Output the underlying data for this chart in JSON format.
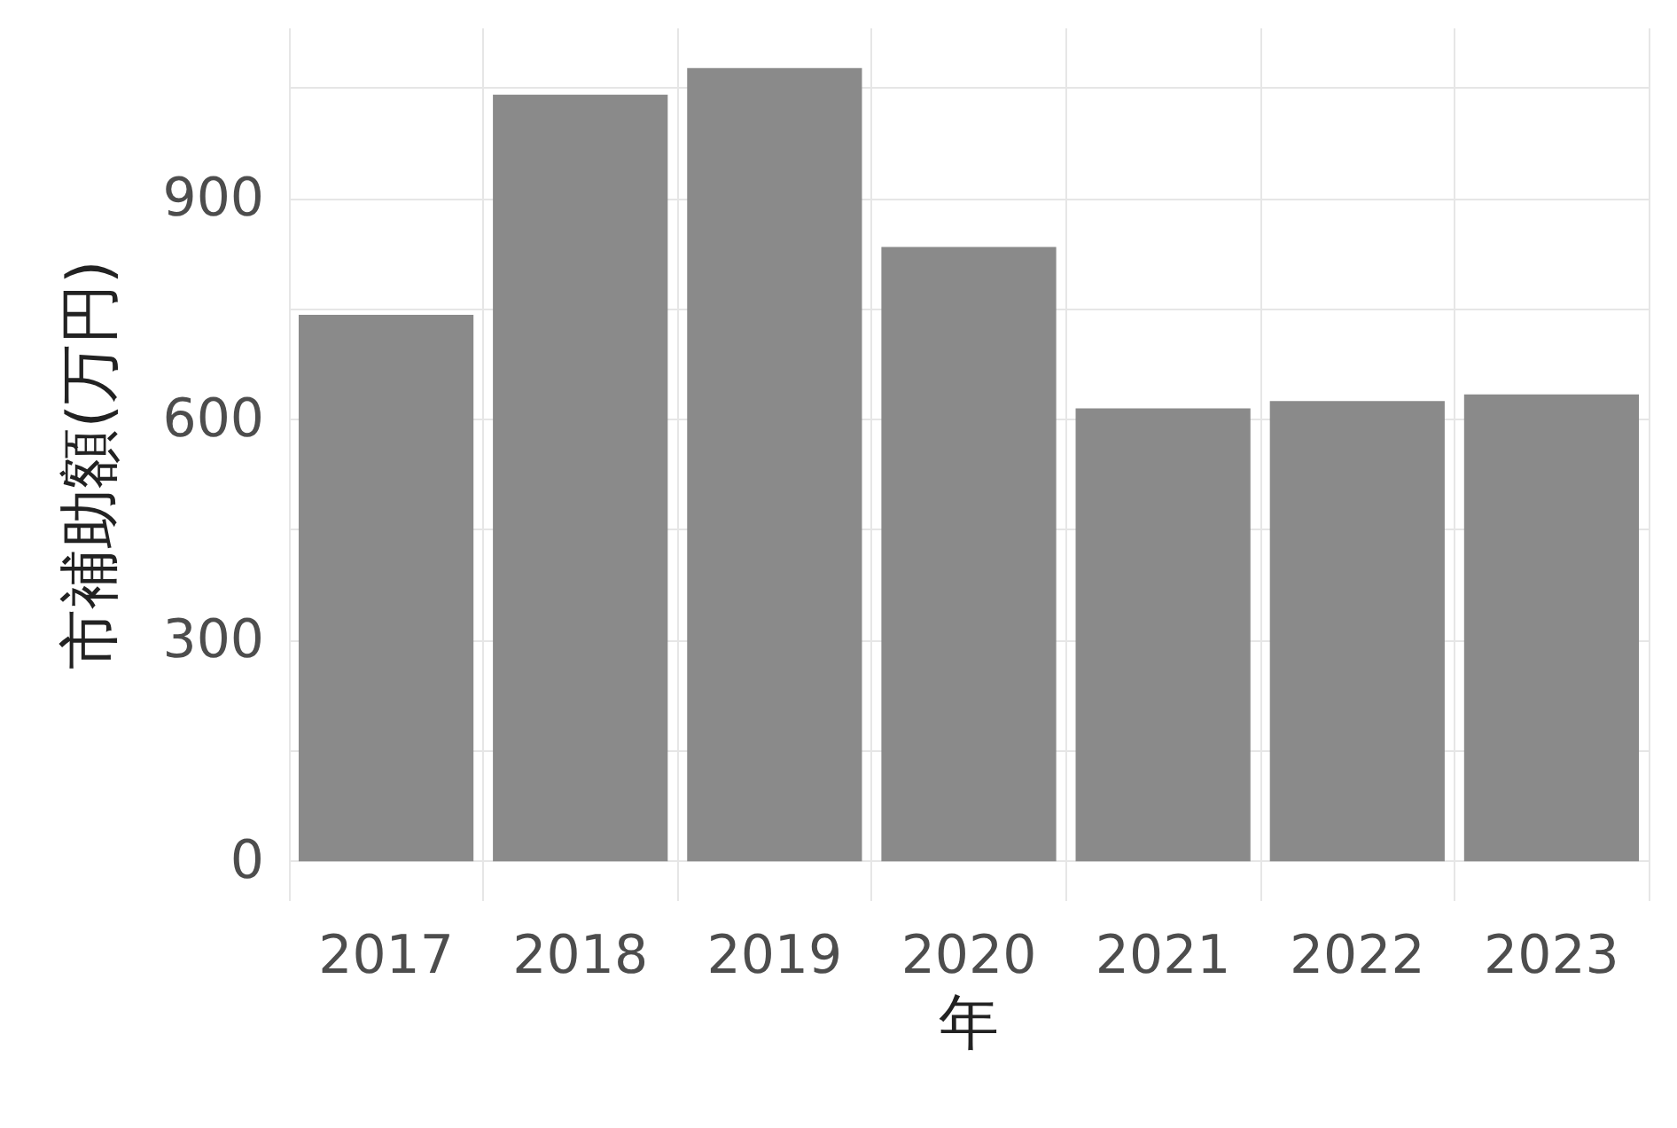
{
  "chart_data": {
    "type": "bar",
    "xlabel": "年",
    "ylabel": "市補助額(万円)",
    "categories": [
      "2017",
      "2018",
      "2019",
      "2020",
      "2021",
      "2022",
      "2023"
    ],
    "values": [
      742,
      1041,
      1077,
      834,
      615,
      625,
      634
    ],
    "color": "#8a8a8a",
    "ylim": [
      -54,
      1131
    ],
    "yticks": [
      0,
      {
        "value": 150,
        "label": null
      },
      300,
      {
        "value": 450,
        "label": null
      },
      600,
      {
        "value": 750,
        "label": null
      },
      900,
      {
        "value": 1050,
        "label": null
      }
    ],
    "grid": true
  }
}
